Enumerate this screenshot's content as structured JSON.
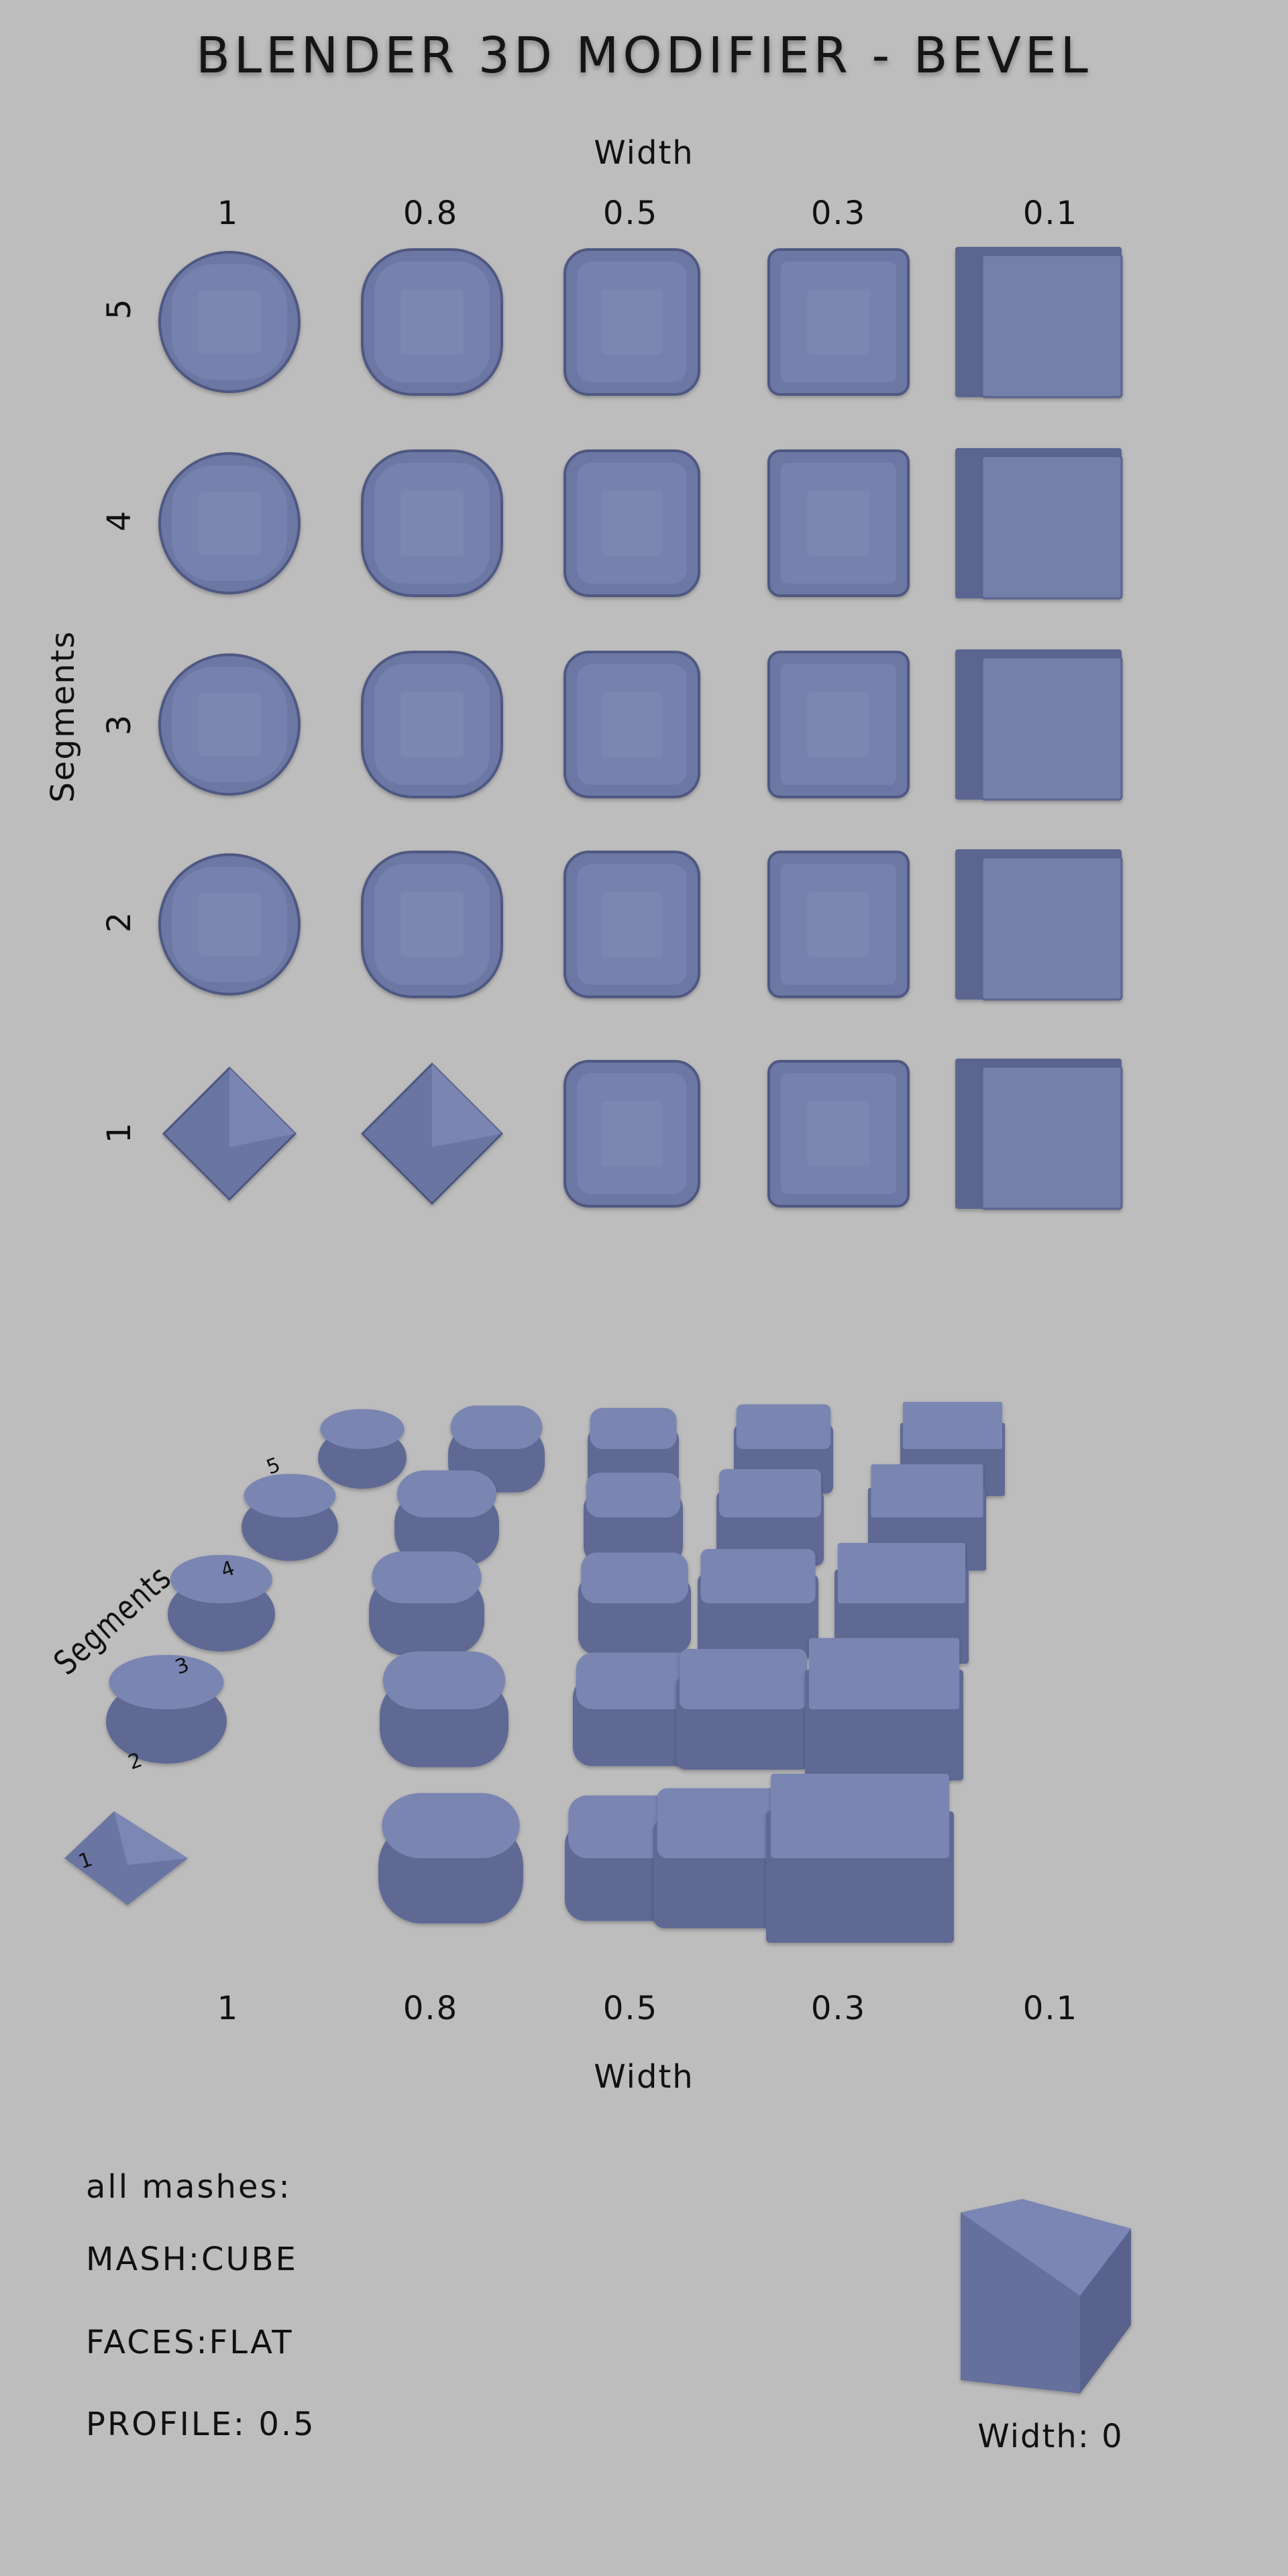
{
  "title": "BLENDER 3D MODIFIER - BEVEL",
  "front_view": {
    "x_axis_label": "Width",
    "y_axis_label": "Segments",
    "widths": [
      "1",
      "0.8",
      "0.5",
      "0.3",
      "0.1"
    ],
    "segments": [
      "5",
      "4",
      "3",
      "2",
      "1"
    ]
  },
  "perspective_view": {
    "x_axis_label": "Width",
    "y_axis_label": "Segments",
    "widths": [
      "1",
      "0.8",
      "0.5",
      "0.3",
      "0.1"
    ],
    "segments": [
      "5",
      "4",
      "3",
      "2",
      "1"
    ]
  },
  "info": {
    "heading": "all mashes:",
    "mesh": "MASH:CUBE",
    "faces": "FACES:FLAT",
    "profile": "PROFILE: 0.5"
  },
  "reference": {
    "label": "Width: 0"
  },
  "colors": {
    "background": "#bdbdbd",
    "mesh_face": "#7580aa",
    "mesh_dark": "#525b82"
  },
  "icons": [
    "beveled-cube",
    "plain-cube"
  ]
}
